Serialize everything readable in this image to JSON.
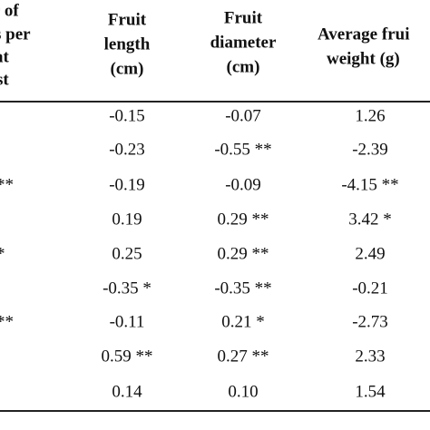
{
  "header": {
    "columns": [
      {
        "lines": [
          "r of",
          "s per",
          "at",
          "st"
        ]
      },
      {
        "lines": [
          "Fruit",
          "length",
          "(cm)"
        ]
      },
      {
        "lines": [
          "Fruit",
          "diameter",
          "(cm)"
        ]
      },
      {
        "lines": [
          "Average frui",
          "weight (g)"
        ]
      }
    ]
  },
  "table": {
    "rows": [
      [
        null,
        "-0.15",
        "-0.07",
        "1.26"
      ],
      [
        null,
        "-0.23",
        "-0.55 **",
        "-2.39"
      ],
      [
        "**",
        "-0.19",
        "-0.09",
        "-4.15 **"
      ],
      [
        null,
        "0.19",
        "0.29 **",
        "3.42 *"
      ],
      [
        "*",
        "0.25",
        "0.29 **",
        "2.49"
      ],
      [
        ".",
        "-0.35 *",
        "-0.35 **",
        "-0.21"
      ],
      [
        "**",
        "-0.11",
        "0.21 *",
        "-2.73"
      ],
      [
        null,
        "0.59 **",
        "0.27 **",
        "2.33"
      ],
      [
        null,
        "0.14",
        "0.10",
        "1.54"
      ]
    ]
  }
}
